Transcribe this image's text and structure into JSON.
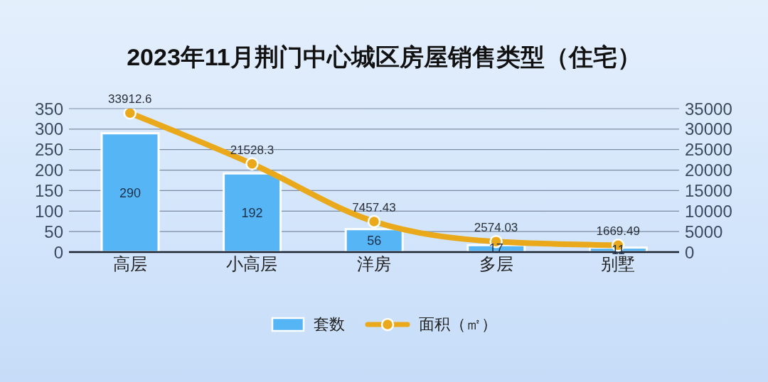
{
  "chart_data": {
    "type": "bar",
    "title": "2023年11月荆门中心城区房屋销售类型（住宅）",
    "categories": [
      "高层",
      "小高层",
      "洋房",
      "多层",
      "别墅"
    ],
    "series": [
      {
        "name": "套数",
        "color": "#56b5f5",
        "values": [
          290,
          192,
          56,
          17,
          11
        ]
      },
      {
        "name": "面积（㎡）",
        "type": "line",
        "axis": "y2",
        "color": "#e9a91a",
        "values": [
          33912.6,
          21528.3,
          7457.43,
          2574.03,
          1669.49
        ]
      }
    ],
    "ylim": [
      0,
      350
    ],
    "yticks": [
      0,
      50,
      100,
      150,
      200,
      250,
      300,
      350
    ],
    "y2lim": [
      0,
      35000
    ],
    "y2ticks": [
      0,
      5000,
      10000,
      15000,
      20000,
      25000,
      30000,
      35000
    ],
    "grid": "y",
    "legend": "bottom",
    "marker": "circle",
    "data_labels": true
  }
}
